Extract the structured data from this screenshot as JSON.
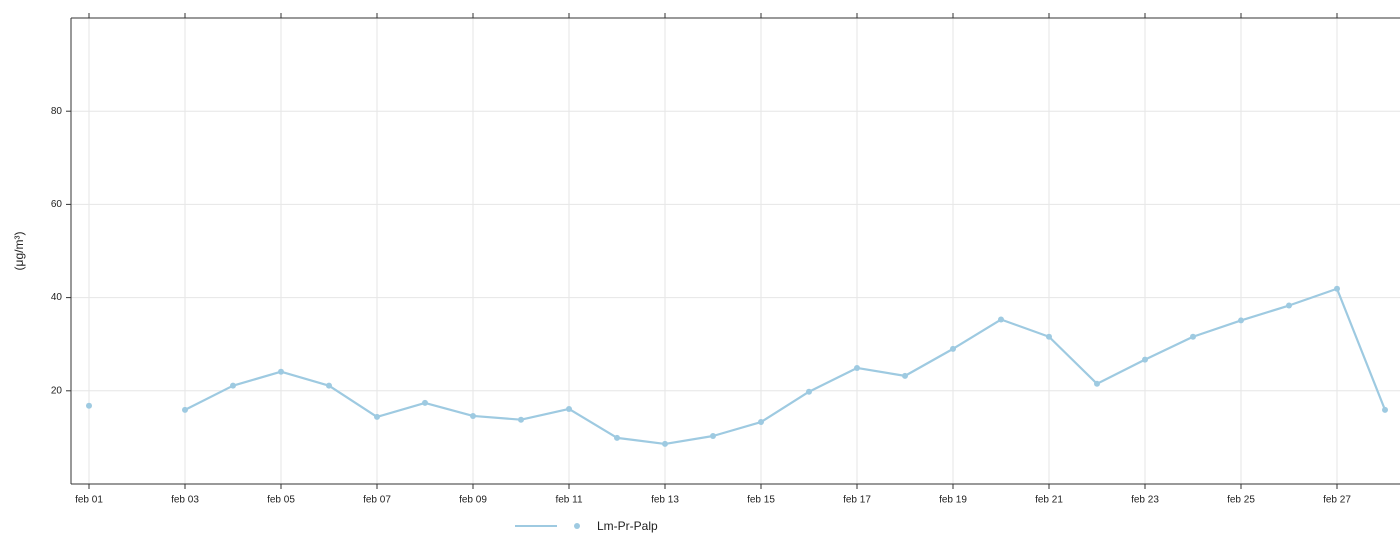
{
  "chart_data": {
    "type": "line",
    "y_label": "(μg/m³)",
    "categories": [
      "feb 01",
      null,
      "feb 03",
      null,
      "feb 05",
      null,
      "feb 07",
      null,
      "feb 09",
      null,
      "feb 11",
      null,
      "feb 13",
      null,
      "feb 15",
      null,
      "feb 17",
      null,
      "feb 19",
      null,
      "feb 21",
      null,
      "feb 23",
      null,
      "feb 25",
      null,
      "feb 27",
      null
    ],
    "series": [
      {
        "name": "Lm-Pr-Palp",
        "color": "#9ecae1",
        "values": [
          16.8,
          null,
          15.9,
          21.1,
          24.1,
          21.1,
          14.4,
          17.4,
          14.6,
          13.8,
          16.1,
          9.9,
          8.6,
          10.3,
          13.3,
          19.8,
          24.9,
          23.2,
          29.0,
          35.3,
          31.6,
          21.5,
          26.7,
          31.6,
          35.1,
          38.3,
          41.9,
          15.9
        ]
      }
    ],
    "ylim": [
      0,
      100
    ],
    "yticks": [
      20,
      40,
      60,
      80
    ],
    "grid": true,
    "legend": "bottom"
  }
}
